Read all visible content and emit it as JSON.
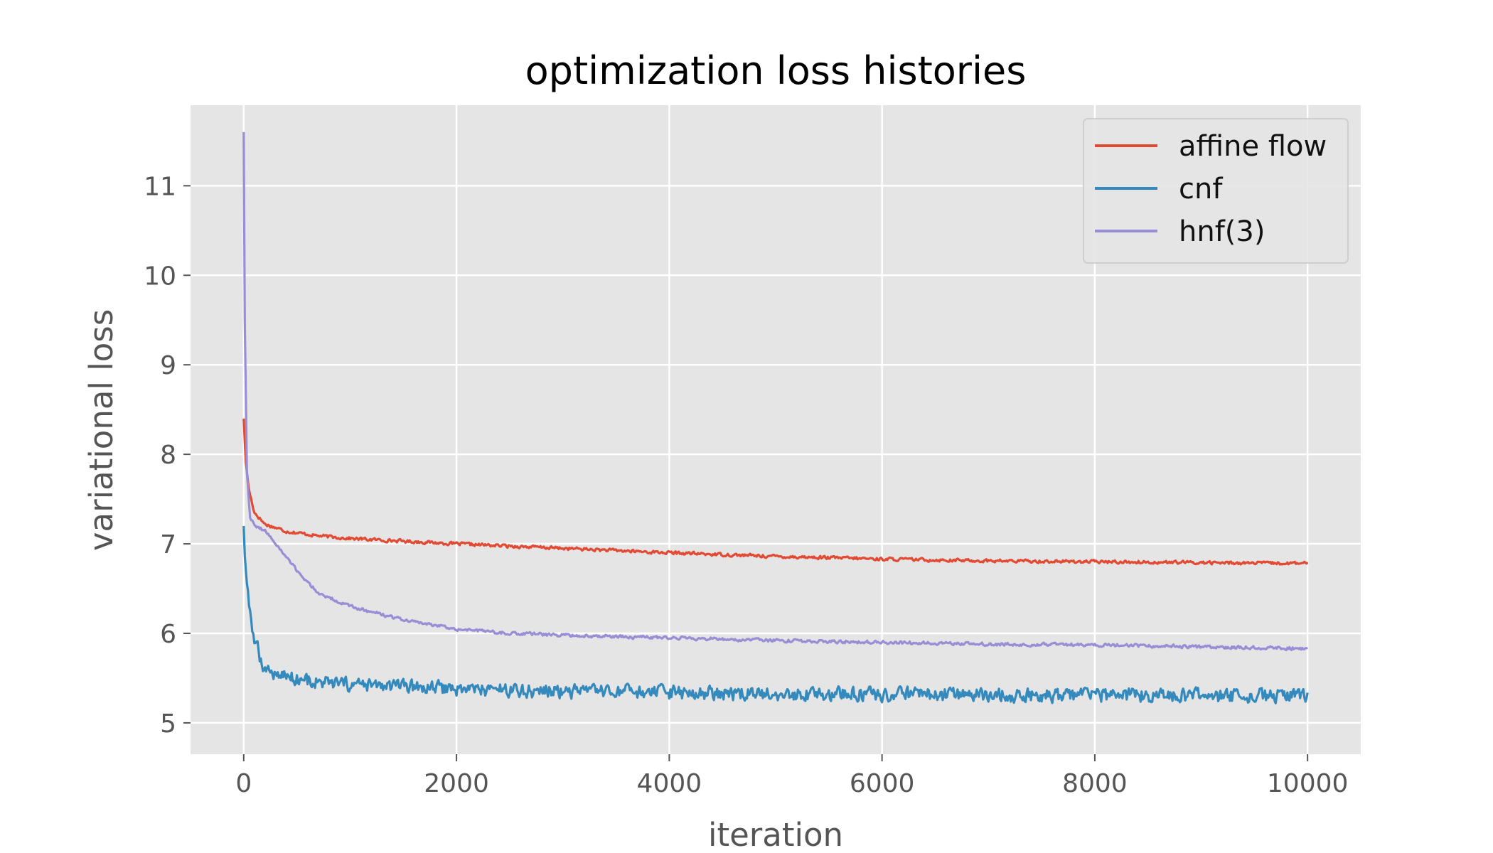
{
  "chart_data": {
    "type": "line",
    "title": "optimization loss histories",
    "xlabel": "iteration",
    "ylabel": "variational loss",
    "xlim": [
      -500,
      10500
    ],
    "ylim": [
      4.65,
      11.9
    ],
    "xticks": [
      0,
      2000,
      4000,
      6000,
      8000,
      10000
    ],
    "yticks": [
      5,
      6,
      7,
      8,
      9,
      10,
      11
    ],
    "grid": true,
    "legend_position": "top-right",
    "colors": {
      "background": "#e5e5e5",
      "grid": "#ffffff"
    },
    "series": [
      {
        "name": "affine flow",
        "color": "#e24a33",
        "noise": 0.025,
        "x": [
          0,
          20,
          50,
          100,
          200,
          400,
          700,
          1000,
          1500,
          2000,
          3000,
          4000,
          5000,
          6000,
          7000,
          8000,
          9000,
          10000
        ],
        "y": [
          8.4,
          7.9,
          7.6,
          7.35,
          7.22,
          7.14,
          7.09,
          7.06,
          7.03,
          7.0,
          6.95,
          6.9,
          6.86,
          6.83,
          6.81,
          6.8,
          6.79,
          6.78
        ]
      },
      {
        "name": "cnf",
        "color": "#348abd",
        "noise": 0.11,
        "x": [
          0,
          10,
          30,
          60,
          100,
          150,
          200,
          300,
          500,
          700,
          1000,
          1500,
          2000,
          3000,
          4000,
          5000,
          6000,
          7000,
          8000,
          9000,
          10000
        ],
        "y": [
          7.2,
          6.9,
          6.5,
          6.2,
          5.95,
          5.75,
          5.6,
          5.55,
          5.5,
          5.45,
          5.42,
          5.4,
          5.38,
          5.35,
          5.33,
          5.32,
          5.32,
          5.31,
          5.31,
          5.3,
          5.3
        ]
      },
      {
        "name": "hnf(3)",
        "color": "#988ed5",
        "noise": 0.025,
        "x": [
          0,
          10,
          30,
          60,
          100,
          200,
          300,
          400,
          500,
          700,
          1000,
          1500,
          2000,
          2500,
          3000,
          4000,
          5000,
          6000,
          7000,
          8000,
          9000,
          10000
        ],
        "y": [
          11.6,
          9.5,
          7.8,
          7.3,
          7.2,
          7.15,
          7.0,
          6.85,
          6.7,
          6.45,
          6.3,
          6.15,
          6.05,
          6.0,
          5.98,
          5.95,
          5.92,
          5.9,
          5.88,
          5.87,
          5.85,
          5.83
        ]
      }
    ]
  }
}
